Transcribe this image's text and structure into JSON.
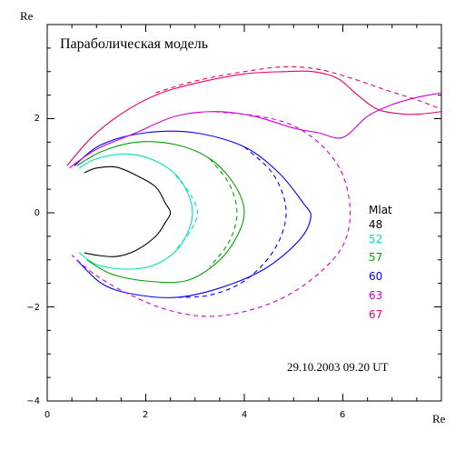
{
  "chart_data": {
    "type": "line",
    "title": "Параболическая модель",
    "xlabel": "Re",
    "ylabel": "Re",
    "xlim": [
      0,
      8
    ],
    "ylim": [
      -4,
      4
    ],
    "x_ticks": [
      "0",
      "2",
      "4",
      "6"
    ],
    "y_ticks": [
      "2",
      "0",
      "−2",
      "−4"
    ],
    "grid": false,
    "legend_title": "Mlat",
    "legend_position": "right",
    "annotation": "29.10.2003 09.20 UT",
    "series": [
      {
        "name": "48",
        "color": "#000000",
        "solid": [
          [
            0.75,
            0.85
          ],
          [
            1.0,
            0.95
          ],
          [
            1.4,
            0.97
          ],
          [
            1.8,
            0.8
          ],
          [
            2.2,
            0.55
          ],
          [
            2.4,
            0.2
          ],
          [
            2.5,
            0.0
          ],
          [
            2.4,
            -0.2
          ],
          [
            2.2,
            -0.5
          ],
          [
            1.8,
            -0.8
          ],
          [
            1.4,
            -0.93
          ],
          [
            1.0,
            -0.9
          ],
          [
            0.75,
            -0.85
          ]
        ],
        "dashed": null
      },
      {
        "name": "52",
        "color": "#00e0c0",
        "solid": [
          [
            0.65,
            0.95
          ],
          [
            1.0,
            1.15
          ],
          [
            1.6,
            1.25
          ],
          [
            2.2,
            1.1
          ],
          [
            2.7,
            0.7
          ],
          [
            2.95,
            0.0
          ],
          [
            2.7,
            -0.7
          ],
          [
            2.2,
            -1.1
          ],
          [
            1.6,
            -1.2
          ],
          [
            1.0,
            -1.1
          ],
          [
            0.65,
            -0.85
          ]
        ],
        "dashed": [
          [
            2.6,
            0.8
          ],
          [
            2.9,
            0.4
          ],
          [
            3.05,
            0.0
          ],
          [
            2.9,
            -0.4
          ],
          [
            2.6,
            -0.8
          ]
        ]
      },
      {
        "name": "57",
        "color": "#00a000",
        "solid": [
          [
            0.6,
            1.0
          ],
          [
            1.1,
            1.3
          ],
          [
            1.8,
            1.5
          ],
          [
            2.6,
            1.45
          ],
          [
            3.3,
            1.15
          ],
          [
            3.8,
            0.6
          ],
          [
            4.0,
            0.0
          ],
          [
            3.8,
            -0.6
          ],
          [
            3.4,
            -1.1
          ],
          [
            2.8,
            -1.45
          ],
          [
            2.0,
            -1.45
          ],
          [
            1.3,
            -1.3
          ],
          [
            0.8,
            -1.0
          ]
        ],
        "dashed": [
          [
            3.3,
            1.15
          ],
          [
            3.7,
            0.6
          ],
          [
            3.85,
            0.0
          ],
          [
            3.7,
            -0.6
          ],
          [
            3.3,
            -1.15
          ]
        ]
      },
      {
        "name": "60",
        "color": "#0000ff",
        "solid": [
          [
            0.55,
            1.0
          ],
          [
            1.1,
            1.45
          ],
          [
            2.0,
            1.7
          ],
          [
            3.0,
            1.7
          ],
          [
            4.0,
            1.4
          ],
          [
            4.7,
            0.85
          ],
          [
            5.2,
            0.2
          ],
          [
            5.35,
            -0.1
          ],
          [
            5.1,
            -0.6
          ],
          [
            4.4,
            -1.2
          ],
          [
            3.5,
            -1.6
          ],
          [
            2.6,
            -1.8
          ],
          [
            1.7,
            -1.72
          ],
          [
            1.1,
            -1.5
          ],
          [
            0.6,
            -1.0
          ]
        ],
        "dashed": [
          [
            4.0,
            1.4
          ],
          [
            4.6,
            0.8
          ],
          [
            4.85,
            0.0
          ],
          [
            4.6,
            -0.8
          ],
          [
            4.0,
            -1.45
          ],
          [
            3.3,
            -1.75
          ],
          [
            2.6,
            -1.8
          ]
        ]
      },
      {
        "name": "63",
        "color": "#d000d0",
        "solid": [
          [
            0.45,
            0.95
          ],
          [
            1.0,
            1.35
          ],
          [
            1.8,
            1.7
          ],
          [
            2.6,
            2.05
          ],
          [
            3.4,
            2.15
          ],
          [
            4.2,
            2.05
          ],
          [
            5.0,
            1.8
          ],
          [
            5.5,
            1.7
          ],
          [
            6.0,
            1.6
          ],
          [
            6.5,
            2.05
          ],
          [
            7.0,
            2.3
          ],
          [
            7.5,
            2.45
          ],
          [
            8.0,
            2.55
          ]
        ],
        "dashed": [
          [
            3.4,
            2.15
          ],
          [
            4.3,
            2.05
          ],
          [
            5.0,
            1.85
          ],
          [
            5.6,
            1.4
          ],
          [
            6.0,
            0.8
          ],
          [
            6.15,
            0.0
          ],
          [
            6.0,
            -0.7
          ],
          [
            5.5,
            -1.3
          ],
          [
            4.8,
            -1.8
          ],
          [
            4.0,
            -2.1
          ],
          [
            3.2,
            -2.2
          ],
          [
            2.4,
            -2.05
          ],
          [
            1.6,
            -1.7
          ],
          [
            0.95,
            -1.3
          ],
          [
            0.5,
            -0.9
          ]
        ]
      },
      {
        "name": "67",
        "color": "#e8006a",
        "solid": [
          [
            0.4,
            1.0
          ],
          [
            0.9,
            1.6
          ],
          [
            1.5,
            2.1
          ],
          [
            2.2,
            2.5
          ],
          [
            3.0,
            2.75
          ],
          [
            4.0,
            2.95
          ],
          [
            4.8,
            3.0
          ],
          [
            5.4,
            3.0
          ],
          [
            5.9,
            2.85
          ],
          [
            6.3,
            2.5
          ],
          [
            6.7,
            2.2
          ],
          [
            7.2,
            2.1
          ],
          [
            7.6,
            2.1
          ],
          [
            8.0,
            2.15
          ]
        ],
        "dashed": [
          [
            2.2,
            2.55
          ],
          [
            3.0,
            2.8
          ],
          [
            4.0,
            3.0
          ],
          [
            4.8,
            3.1
          ],
          [
            5.5,
            3.05
          ],
          [
            6.2,
            2.85
          ],
          [
            6.9,
            2.6
          ],
          [
            7.5,
            2.4
          ],
          [
            8.0,
            2.2
          ]
        ]
      }
    ]
  }
}
